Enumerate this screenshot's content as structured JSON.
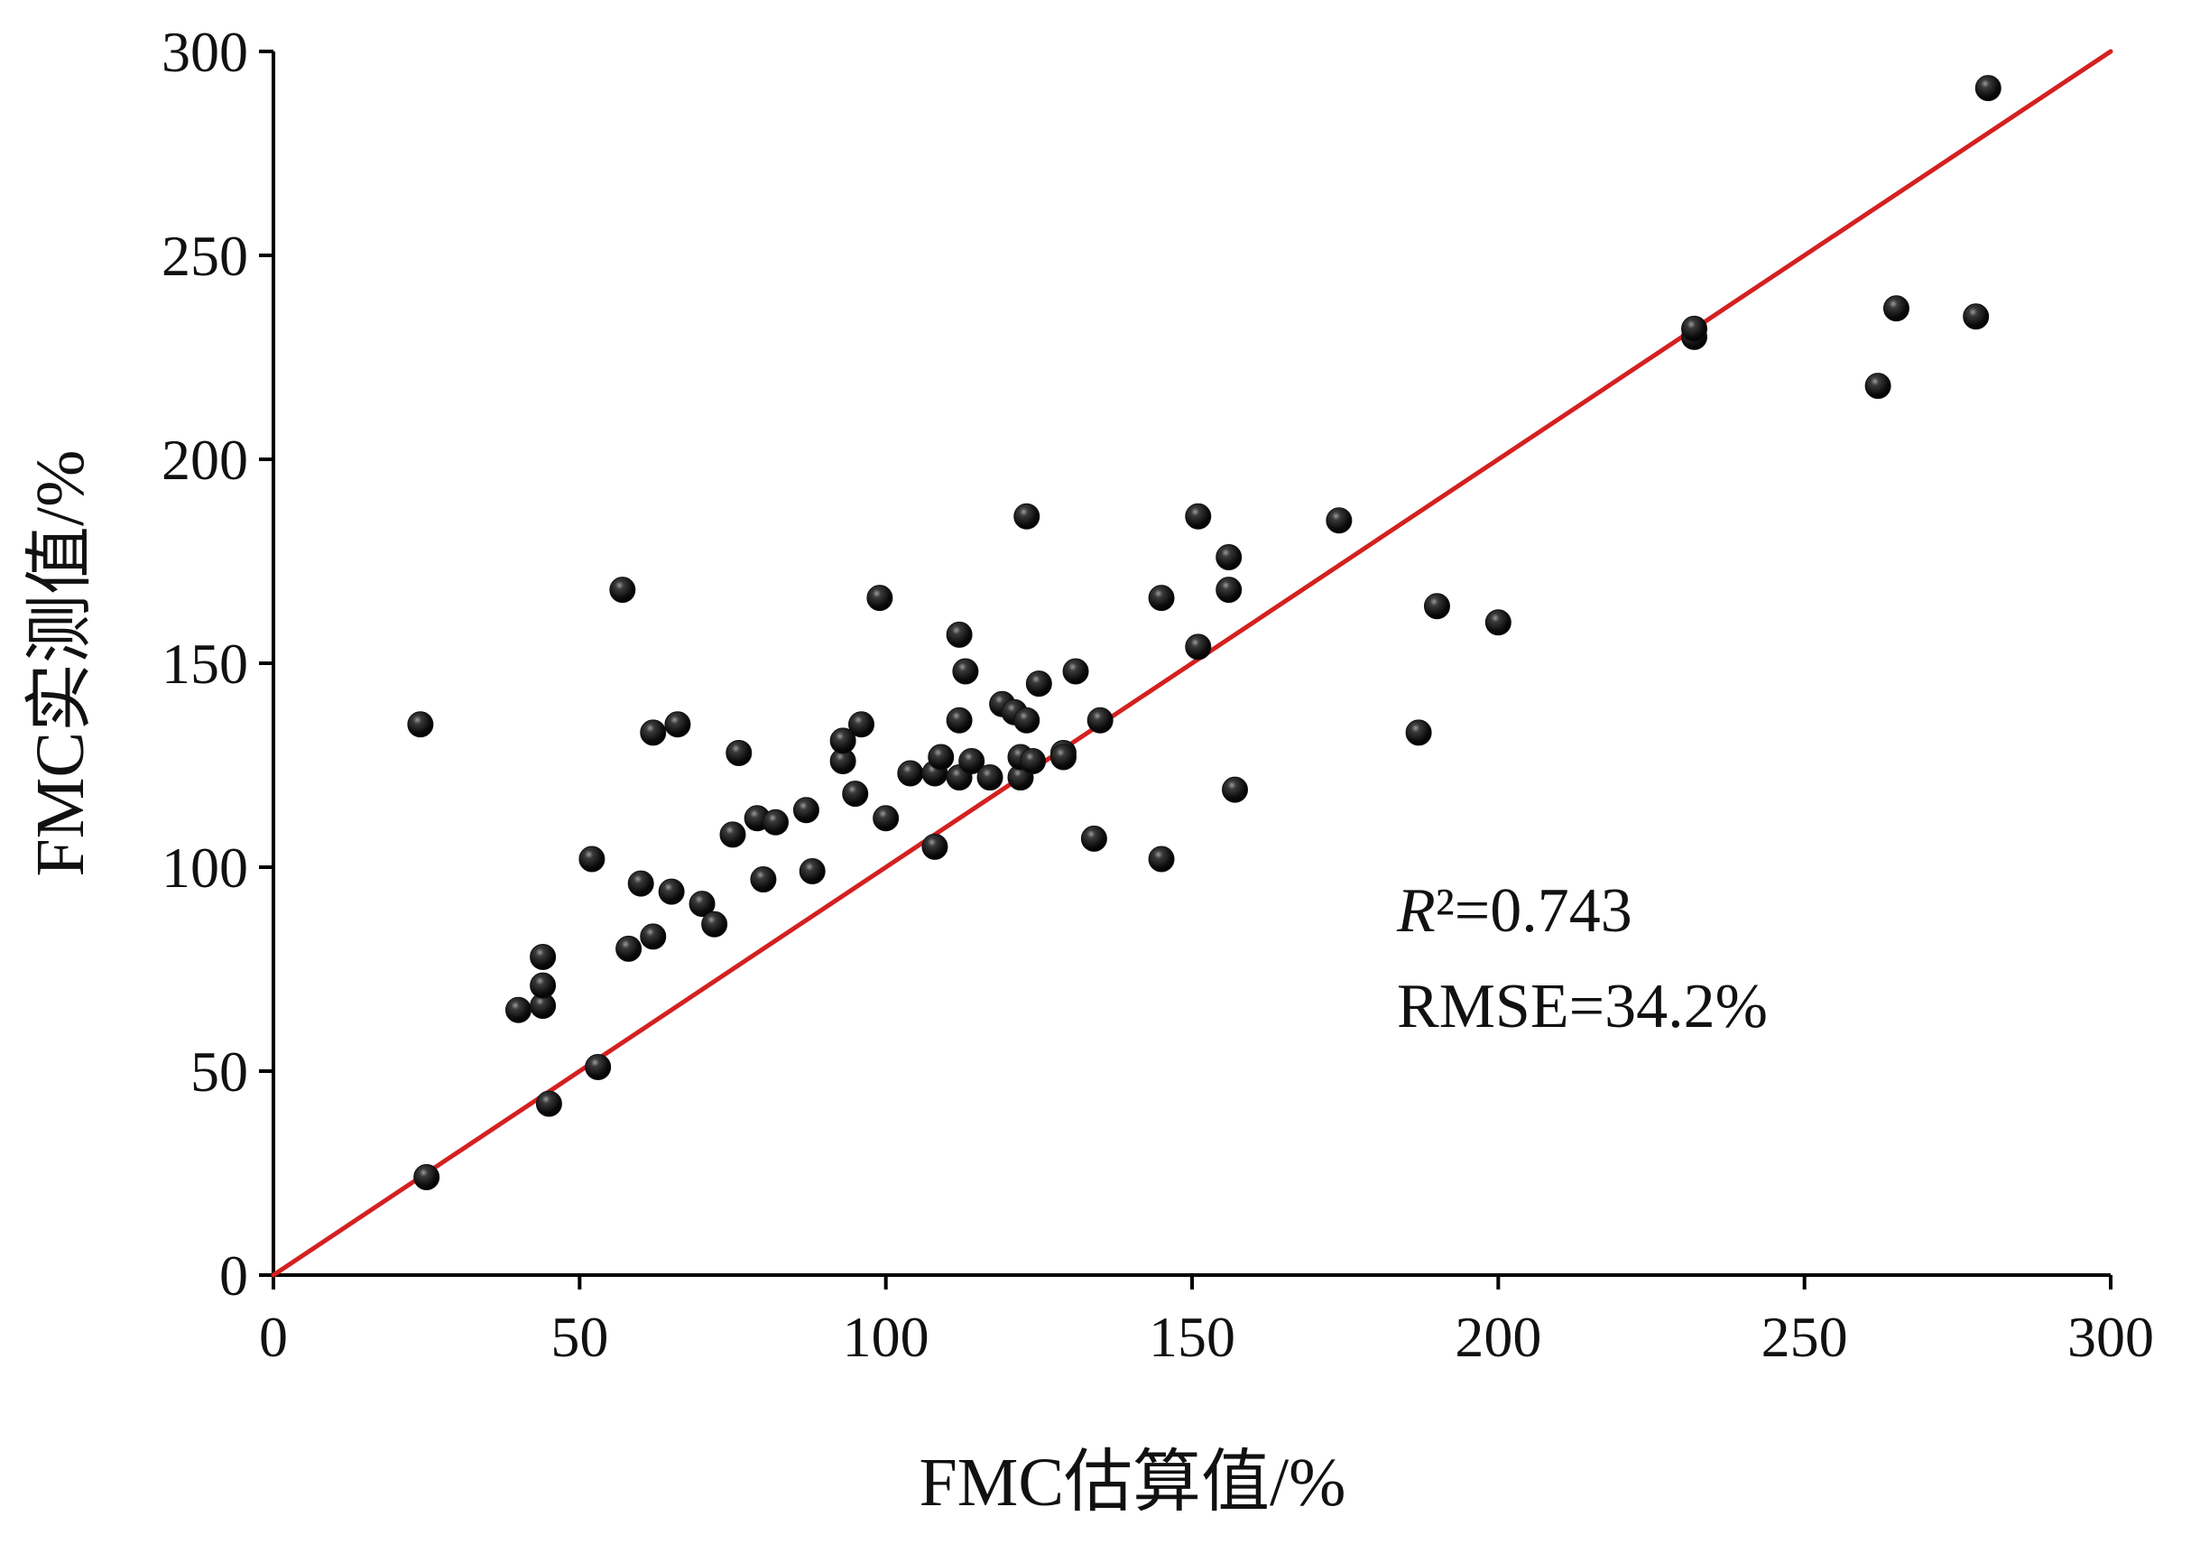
{
  "chart_data": {
    "type": "scatter",
    "xlabel": "FMC估算值/%",
    "ylabel": "FMC实测值/%",
    "xlim": [
      0,
      300
    ],
    "ylim": [
      0,
      300
    ],
    "xticks": [
      "0",
      "50",
      "100",
      "150",
      "200",
      "250",
      "300"
    ],
    "yticks": [
      "0",
      "50",
      "100",
      "150",
      "200",
      "250",
      "300"
    ],
    "grid": false,
    "fit_line": {
      "x": [
        0,
        300
      ],
      "y": [
        0,
        300
      ],
      "color": "#d42020"
    },
    "point_color": "#111111",
    "annotations": {
      "r2_label": "R",
      "r2_value": "²=0.743",
      "rmse": "RMSE=34.2%"
    },
    "points": [
      [
        24,
        135
      ],
      [
        25,
        24
      ],
      [
        40,
        65
      ],
      [
        44,
        66
      ],
      [
        44,
        71
      ],
      [
        44,
        78
      ],
      [
        45,
        42
      ],
      [
        52,
        102
      ],
      [
        53,
        51
      ],
      [
        57,
        168
      ],
      [
        58,
        80
      ],
      [
        60,
        96
      ],
      [
        62,
        83
      ],
      [
        62,
        133
      ],
      [
        65,
        94
      ],
      [
        66,
        135
      ],
      [
        70,
        91
      ],
      [
        72,
        86
      ],
      [
        75,
        108
      ],
      [
        76,
        128
      ],
      [
        79,
        112
      ],
      [
        80,
        97
      ],
      [
        82,
        111
      ],
      [
        87,
        114
      ],
      [
        88,
        99
      ],
      [
        93,
        126
      ],
      [
        93,
        131
      ],
      [
        95,
        118
      ],
      [
        96,
        135
      ],
      [
        99,
        166
      ],
      [
        100,
        112
      ],
      [
        104,
        123
      ],
      [
        108,
        105
      ],
      [
        108,
        123
      ],
      [
        109,
        127
      ],
      [
        112,
        122
      ],
      [
        112,
        157
      ],
      [
        112,
        136
      ],
      [
        113,
        148
      ],
      [
        114,
        126
      ],
      [
        117,
        122
      ],
      [
        119,
        140
      ],
      [
        121,
        138
      ],
      [
        122,
        122
      ],
      [
        122,
        127
      ],
      [
        123,
        186
      ],
      [
        123,
        136
      ],
      [
        124,
        126
      ],
      [
        125,
        145
      ],
      [
        129,
        128
      ],
      [
        129,
        127
      ],
      [
        131,
        148
      ],
      [
        134,
        107
      ],
      [
        135,
        136
      ],
      [
        145,
        166
      ],
      [
        145,
        102
      ],
      [
        151,
        186
      ],
      [
        151,
        154
      ],
      [
        156,
        176
      ],
      [
        156,
        168
      ],
      [
        157,
        119
      ],
      [
        174,
        185
      ],
      [
        187,
        133
      ],
      [
        190,
        164
      ],
      [
        200,
        160
      ],
      [
        232,
        230
      ],
      [
        232,
        232
      ],
      [
        262,
        218
      ],
      [
        265,
        237
      ],
      [
        278,
        235
      ],
      [
        280,
        291
      ]
    ]
  }
}
